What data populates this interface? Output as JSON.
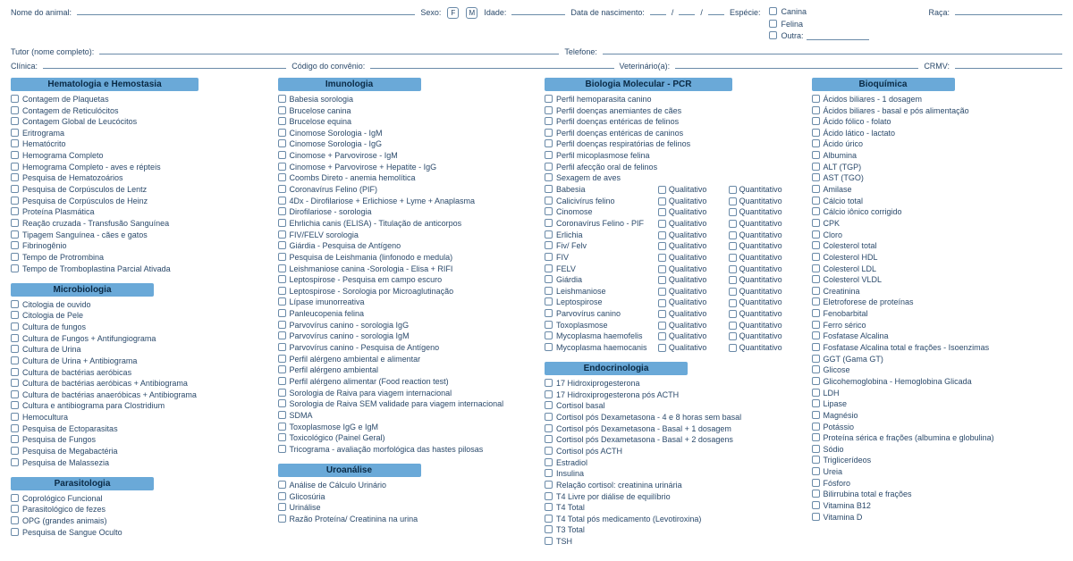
{
  "header": {
    "nome_animal": "Nome do animal:",
    "sexo": "Sexo:",
    "sexo_f": "F",
    "sexo_m": "M",
    "idade": "Idade:",
    "data_nasc": "Data de nascimento:",
    "data_sep": "/",
    "especie": "Espécie:",
    "esp_canina": "Canina",
    "esp_felina": "Felina",
    "esp_outra": "Outra:",
    "raca": "Raça:",
    "tutor": "Tutor (nome completo):",
    "telefone": "Telefone:",
    "clinica": "Clínica:",
    "codigo_conv": "Código do convênio:",
    "veterinario": "Veterinário(a):",
    "crmv": "CRMV:"
  },
  "sections": {
    "hematologia": {
      "title": "Hematologia e Hemostasia",
      "items": [
        "Contagem de Plaquetas",
        "Contagem de Reticulócitos",
        "Contagem Global de Leucócitos",
        "Eritrograma",
        "Hematócrito",
        "Hemograma Completo",
        "Hemograma Completo - aves e répteis",
        "Pesquisa de Hematozoários",
        "Pesquisa de Corpúsculos de Lentz",
        "Pesquisa de Corpúsculos de Heinz",
        "Proteína Plasmática",
        "Reação cruzada - Transfusão Sanguínea",
        "Tipagem Sanguínea - cães e gatos",
        "Fibrinogênio",
        "Tempo de Protrombina",
        "Tempo de Tromboplastina Parcial Ativada"
      ]
    },
    "microbiologia": {
      "title": "Microbiologia",
      "items": [
        "Citologia de ouvido",
        "Citologia de Pele",
        "Cultura de fungos",
        "Cultura de Fungos + Antifungiograma",
        "Cultura de Urina",
        "Cultura de Urina + Antibiograma",
        "Cultura de bactérias aeróbicas",
        "Cultura de bactérias aeróbicas + Antibiograma",
        "Cultura de bactérias anaeróbicas + Antibiograma",
        "Cultura e antibiograma para Clostridium",
        "Hemocultura",
        "Pesquisa de Ectoparasitas",
        "Pesquisa de Fungos",
        "Pesquisa de Megabactéria",
        "Pesquisa de Malassezia"
      ]
    },
    "parasitologia": {
      "title": "Parasitologia",
      "items": [
        "Coprológico Funcional",
        "Parasitológico de fezes",
        "OPG (grandes animais)",
        "Pesquisa de Sangue Oculto"
      ]
    },
    "imunologia": {
      "title": "Imunologia",
      "items": [
        "Babesia sorologia",
        "Brucelose canina",
        "Brucelose equina",
        "Cinomose Sorologia - IgM",
        "Cinomose Sorologia - IgG",
        "Cinomose + Parvovirose - IgM",
        "Cinomose + Parvovirose + Hepatite - IgG",
        "Coombs Direto - anemia hemolítica",
        "Coronavírus Felino (PIF)",
        "4Dx - Dirofilariose + Erlichiose + Lyme + Anaplasma",
        "Dirofilariose - sorologia",
        "Ehrlichia canis (ELISA) - Titulação de anticorpos",
        "FIV/FELV sorologia",
        "Giárdia - Pesquisa de Antígeno",
        "Pesquisa de Leishmania (linfonodo e medula)",
        "Leishmaniose canina -Sorologia - Elisa + RIFI",
        "Leptospirose - Pesquisa em campo escuro",
        "Leptospirose - Sorologia por Microaglutinação",
        "Lípase imunorreativa",
        "Panleucopenia felina",
        "Parvovírus canino - sorologia IgG",
        "Parvovírus canino - sorologia IgM",
        "Parvovírus canino - Pesquisa de Antígeno",
        "Perfil alérgeno ambiental e alimentar",
        "Perfil alérgeno ambiental",
        "Perfil alérgeno alimentar (Food reaction test)",
        "Sorologia de Raiva para viagem internacional",
        "Sorologia de Raiva SEM validade para viagem internacional",
        "SDMA",
        "Toxoplasmose IgG e IgM",
        "Toxicológico (Painel Geral)",
        "Tricograma - avaliação morfológica das hastes pilosas"
      ]
    },
    "uroanalise": {
      "title": "Uroanálise",
      "items": [
        "Análise de Cálculo Urinário",
        "Glicosúria",
        "Urinálise",
        "Razão Proteína/ Creatinina na urina"
      ]
    },
    "biomol": {
      "title": "Biologia Molecular - PCR",
      "simple_items": [
        "Perfil hemoparasita canino",
        "Perfil doenças anemiantes de cães",
        "Perfil doenças entéricas de felinos",
        "Perfil doenças entéricas de caninos",
        "Perfil doenças respiratórias de felinos",
        "Perfil micoplasmose felina",
        "Perfil afecção oral de felinos",
        "Sexagem de aves"
      ],
      "qual_quant_items": [
        "Babesia",
        "Calicivírus felino",
        "Cinomose",
        "Coronavírus Felino - PIF",
        "Erlichia",
        "Fiv/ Felv",
        "FIV",
        "FELV",
        "Giárdia",
        "Leishmaniose",
        "Leptospirose",
        "Parvovírus canino",
        "Toxoplasmose",
        "Mycoplasma haemofelis",
        "Mycoplasma haemocanis"
      ],
      "qualitativo": "Qualitativo",
      "quantitativo": "Quantitativo"
    },
    "endocrinologia": {
      "title": "Endocrinologia",
      "items": [
        "17 Hidroxiprogesterona",
        "17 Hidroxiprogesterona pós ACTH",
        "Cortisol basal",
        "Cortisol pós Dexametasona - 4 e 8 horas sem basal",
        "Cortisol pós Dexametasona - Basal + 1 dosagem",
        "Cortisol pós Dexametasona - Basal + 2 dosagens",
        "Cortisol pós ACTH",
        "Estradiol",
        "Insulina",
        "Relação cortisol: creatinina urinária",
        "T4 Livre por diálise de equilíbrio",
        "T4 Total",
        "T4 Total pós medicamento (Levotiroxina)",
        "T3 Total",
        "TSH"
      ]
    },
    "bioquimica": {
      "title": "Bioquímica",
      "items": [
        "Ácidos biliares - 1 dosagem",
        "Ácidos biliares - basal e pós alimentação",
        "Ácido fólico - folato",
        "Ácido lático - lactato",
        "Ácido úrico",
        "Albumina",
        "ALT (TGP)",
        "AST (TGO)",
        "Amilase",
        "Cálcio total",
        "Cálcio iônico corrigido",
        "CPK",
        "Cloro",
        "Colesterol total",
        "Colesterol HDL",
        "Colesterol LDL",
        "Colesterol VLDL",
        "Creatinina",
        "Eletroforese de proteínas",
        "Fenobarbital",
        "Ferro sérico",
        "Fosfatase Alcalina",
        "Fosfatase Alcalina total e frações - Isoenzimas",
        "GGT (Gama GT)",
        "Glicose",
        "Glicohemoglobina - Hemoglobina Glicada",
        "LDH",
        "Lipase",
        "Magnésio",
        "Potássio",
        "Proteína sérica e frações (albumina e globulina)",
        "Sódio",
        "Triglicerídeos",
        "Ureia",
        "Fósforo",
        "Bilirrubina total e frações",
        "Vitamina B12",
        "Vitamina D"
      ]
    }
  }
}
